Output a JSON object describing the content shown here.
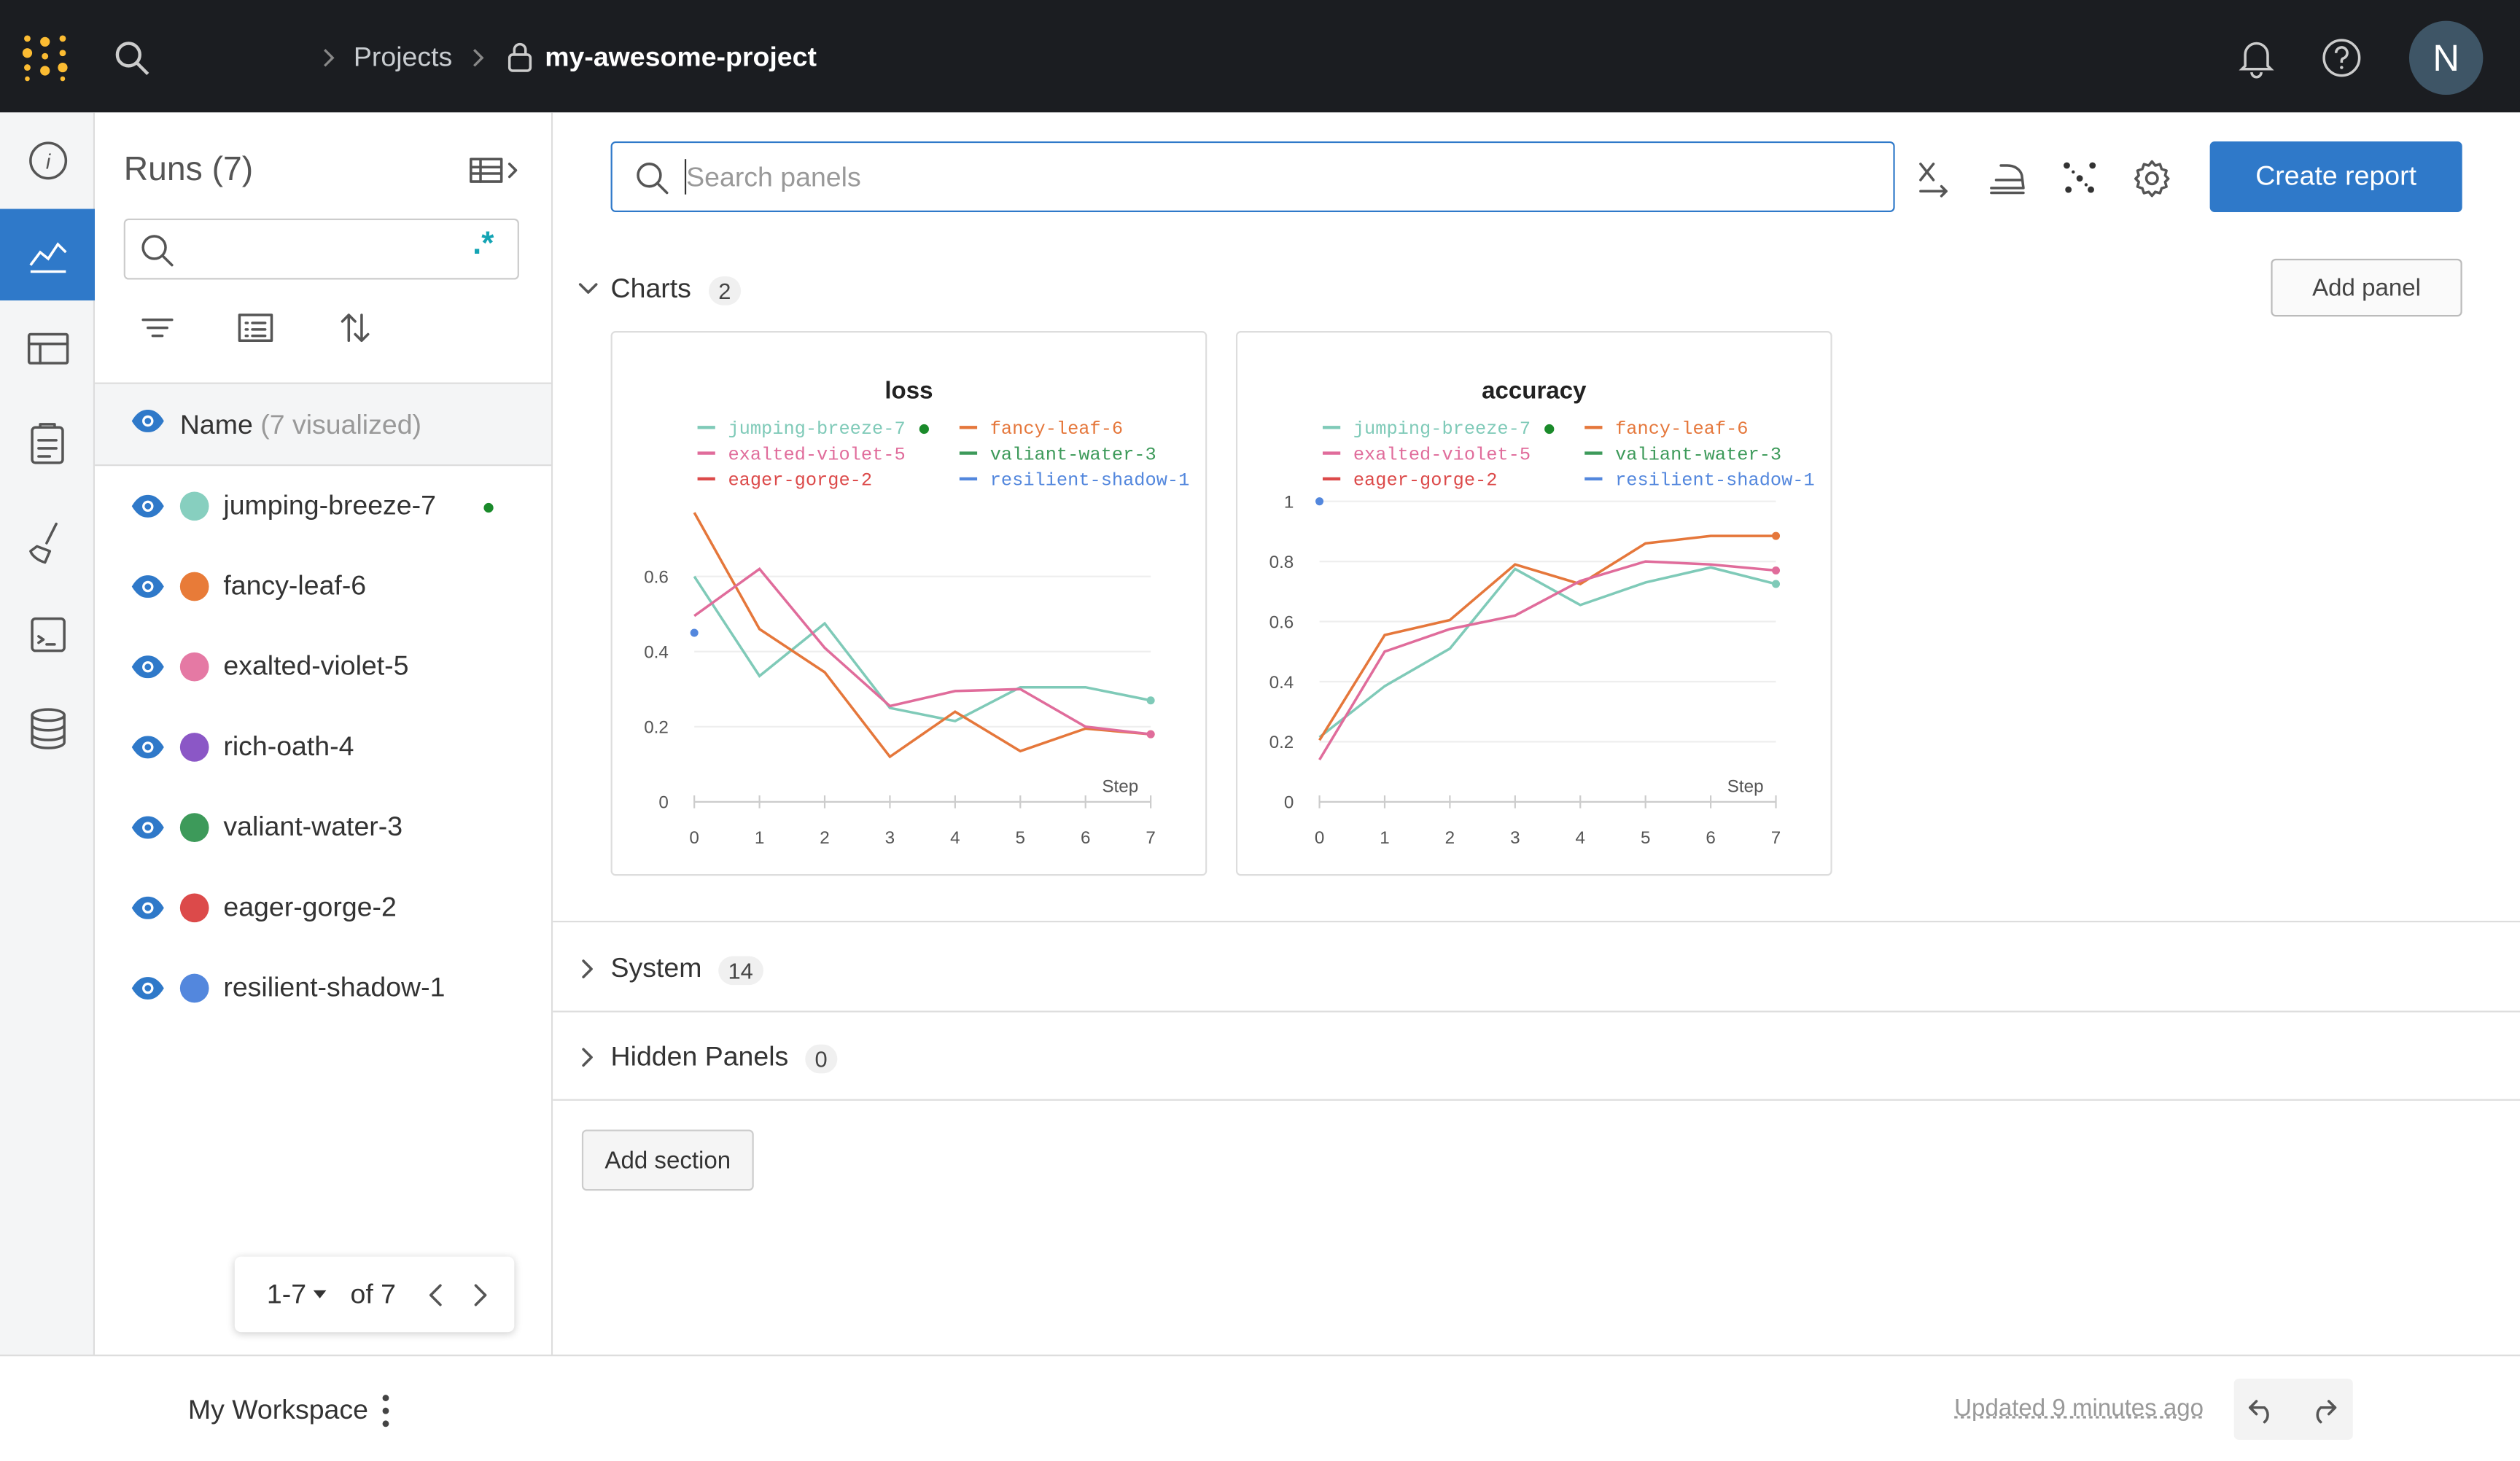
{
  "header": {
    "breadcrumb": [
      "Projects",
      "my-awesome-project"
    ],
    "avatar": "N"
  },
  "sidebar": {
    "title": "Runs (7)",
    "regex_toggle": ".*",
    "name_header": "Name",
    "name_note": "(7 visualized)",
    "runs": [
      {
        "name": "jumping-breeze-7",
        "color": "#87cfbf"
      },
      {
        "name": "fancy-leaf-6",
        "color": "#e87b38"
      },
      {
        "name": "exalted-violet-5",
        "color": "#e579a4"
      },
      {
        "name": "rich-oath-4",
        "color": "#8b57c6"
      },
      {
        "name": "valiant-water-3",
        "color": "#3d9a5a"
      },
      {
        "name": "eager-gorge-2",
        "color": "#dc4a4a"
      },
      {
        "name": "resilient-shadow-1",
        "color": "#5387dd"
      }
    ],
    "pagination": {
      "range": "1-7",
      "of": "of 7"
    }
  },
  "toolbar": {
    "search_placeholder": "Search panels",
    "create_report": "Create report",
    "add_panel": "Add panel"
  },
  "sections": [
    {
      "title": "Charts",
      "count": 2
    },
    {
      "title": "System",
      "count": 14
    },
    {
      "title": "Hidden Panels",
      "count": 0
    }
  ],
  "add_section": "Add section",
  "footer": {
    "workspace": "My Workspace",
    "updated": "Updated 9 minutes ago"
  },
  "chart_data": [
    {
      "type": "line",
      "title": "loss",
      "x_label": "Step",
      "x": [
        0,
        1,
        2,
        3,
        4,
        5,
        6,
        7
      ],
      "xlim": [
        0,
        7
      ],
      "xticks": [
        0,
        1,
        2,
        3,
        4,
        5,
        6,
        7
      ],
      "ylim": [
        0,
        0.8
      ],
      "yticks": [
        0,
        0.2,
        0.4,
        0.6
      ],
      "grid": true,
      "series": [
        {
          "name": "jumping-breeze-7",
          "color": "#7fcab8",
          "values": [
            0.6,
            0.335,
            0.475,
            0.25,
            0.215,
            0.305,
            0.305,
            0.27
          ]
        },
        {
          "name": "fancy-leaf-6",
          "color": "#e5773b",
          "values": [
            0.77,
            0.46,
            0.345,
            0.12,
            0.24,
            0.135,
            0.195,
            0.18
          ]
        },
        {
          "name": "exalted-violet-5",
          "color": "#e06c9b",
          "values": [
            0.495,
            0.62,
            0.41,
            0.255,
            0.295,
            0.3,
            0.2,
            0.18
          ]
        },
        {
          "name": "valiant-water-3",
          "color": "#3d9a5a",
          "values": [
            null,
            null,
            null,
            null,
            null,
            null,
            null,
            null
          ]
        },
        {
          "name": "eager-gorge-2",
          "color": "#dc4a4a",
          "values": [
            null,
            null,
            null,
            null,
            null,
            null,
            null,
            null
          ]
        },
        {
          "name": "resilient-shadow-1",
          "color": "#5387dd",
          "values": [
            0.45,
            null,
            null,
            null,
            null,
            null,
            null,
            null
          ]
        }
      ]
    },
    {
      "type": "line",
      "title": "accuracy",
      "x_label": "Step",
      "x": [
        0,
        1,
        2,
        3,
        4,
        5,
        6,
        7
      ],
      "xlim": [
        0,
        7
      ],
      "xticks": [
        0,
        1,
        2,
        3,
        4,
        5,
        6,
        7
      ],
      "ylim": [
        0,
        1
      ],
      "yticks": [
        0,
        0.2,
        0.4,
        0.6,
        0.8,
        1
      ],
      "grid": true,
      "series": [
        {
          "name": "jumping-breeze-7",
          "color": "#7fcab8",
          "values": [
            0.215,
            0.385,
            0.51,
            0.775,
            0.655,
            0.73,
            0.78,
            0.725
          ]
        },
        {
          "name": "fancy-leaf-6",
          "color": "#e5773b",
          "values": [
            0.205,
            0.555,
            0.605,
            0.79,
            0.725,
            0.86,
            0.885,
            0.885
          ]
        },
        {
          "name": "exalted-violet-5",
          "color": "#e06c9b",
          "values": [
            0.14,
            0.5,
            0.575,
            0.62,
            0.735,
            0.8,
            0.79,
            0.77
          ]
        },
        {
          "name": "valiant-water-3",
          "color": "#3d9a5a",
          "values": [
            null,
            null,
            null,
            null,
            null,
            null,
            null,
            null
          ]
        },
        {
          "name": "eager-gorge-2",
          "color": "#dc4a4a",
          "values": [
            null,
            null,
            null,
            null,
            null,
            null,
            null,
            null
          ]
        },
        {
          "name": "resilient-shadow-1",
          "color": "#5387dd",
          "values": [
            1,
            null,
            null,
            null,
            null,
            null,
            null,
            null
          ]
        }
      ]
    }
  ]
}
